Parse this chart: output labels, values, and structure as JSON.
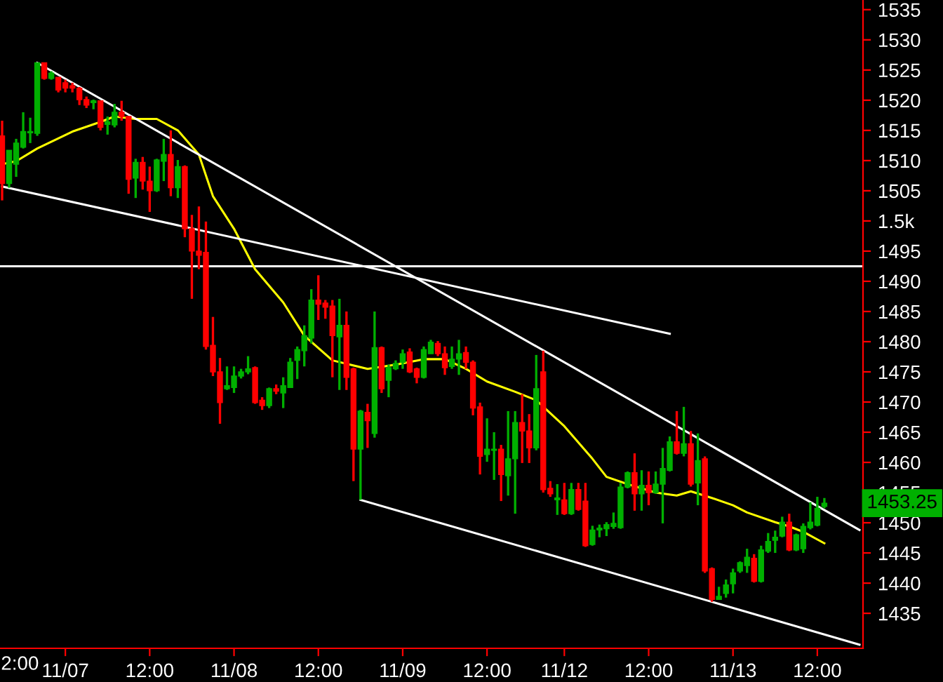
{
  "chart_data": {
    "type": "candlestick",
    "categories": [
      null,
      null,
      null,
      null,
      null,
      null,
      null,
      null,
      null,
      "11/07",
      null,
      null,
      null,
      null,
      null,
      null,
      null,
      null,
      null,
      null,
      null,
      "12:00",
      null,
      null,
      null,
      null,
      null,
      null,
      null,
      null,
      null,
      null,
      null,
      "11/08",
      null,
      null,
      null,
      null,
      null,
      null,
      null,
      null,
      null,
      null,
      null,
      "12:00",
      null,
      null,
      null,
      null,
      null,
      null,
      null,
      null,
      null,
      null,
      null,
      "11/09",
      null,
      null,
      null,
      null,
      null,
      null,
      null,
      null,
      null,
      null,
      null,
      "12:00",
      null,
      null,
      null,
      null,
      null,
      null,
      null,
      null,
      null,
      null,
      "11/12",
      null,
      null,
      null,
      null,
      null,
      null,
      null,
      null,
      null,
      null,
      null,
      "12:00",
      null,
      null,
      null,
      null,
      null,
      null,
      null,
      null,
      null,
      null,
      null,
      "11/13",
      null,
      null,
      null,
      null,
      null,
      null,
      null,
      null,
      null,
      null,
      null,
      "12:00",
      null,
      null,
      null,
      null,
      null,
      null
    ],
    "ylim": [
      1429.2,
      1536.6
    ],
    "yticks": [
      1435,
      1440,
      1445,
      1450,
      1455,
      1460,
      1465,
      1470,
      1475,
      1480,
      1485,
      1490,
      1495,
      {
        "value": 1500,
        "label": "1.5k"
      },
      1505,
      1510,
      1515,
      1520,
      1525,
      1530,
      1535
    ],
    "grid": false,
    "legend": false,
    "ref_lines": [
      {
        "axis": "y",
        "value": 1492.5,
        "color": "#ffffff"
      }
    ],
    "annotations": [
      "1453.25",
      "2:00"
    ],
    "series": [
      {
        "type": "candlestick",
        "ohlc": [
          [
            1514.1,
            1516.6,
            1503.4,
            1506.2
          ],
          [
            1506.2,
            1511.7,
            1505.5,
            1511.7
          ],
          [
            1509.4,
            1513.6,
            1507.3,
            1512.9
          ],
          [
            1512.2,
            1518.0,
            1512.0,
            1514.8
          ],
          [
            1514.6,
            1517.1,
            1512.9,
            1514.8
          ],
          [
            1514.5,
            1526.2,
            1514.1,
            1526.2
          ],
          [
            1526.2,
            1526.2,
            1523.4,
            1523.6
          ],
          [
            1523.6,
            1524.8,
            1523.4,
            1524.5
          ],
          [
            1523.8,
            1523.8,
            1521.3,
            1521.7
          ],
          [
            1522.9,
            1523.4,
            1521.3,
            1522.0
          ],
          [
            1522.4,
            1522.9,
            1521.3,
            1522.0
          ],
          [
            1522.0,
            1522.2,
            1519.2,
            1520.1
          ],
          [
            1520.1,
            1520.6,
            1518.7,
            1519.2
          ],
          [
            1519.6,
            1520.1,
            1518.5,
            1519.9
          ],
          [
            1519.9,
            1519.9,
            1515.0,
            1515.5
          ],
          [
            1516.0,
            1517.3,
            1514.3,
            1516.4
          ],
          [
            1515.9,
            1519.4,
            1515.5,
            1518.0
          ],
          [
            1518.0,
            1519.9,
            1516.6,
            1517.3
          ],
          [
            1517.3,
            1517.3,
            1504.5,
            1506.9
          ],
          [
            1507.1,
            1510.3,
            1503.8,
            1509.7
          ],
          [
            1509.7,
            1510.6,
            1505.2,
            1506.6
          ],
          [
            1506.6,
            1509.0,
            1501.5,
            1505.0
          ],
          [
            1505.0,
            1510.3,
            1504.8,
            1510.1
          ],
          [
            1509.9,
            1513.6,
            1506.6,
            1511.0
          ],
          [
            1511.0,
            1515.0,
            1504.1,
            1505.5
          ],
          [
            1505.5,
            1510.1,
            1503.8,
            1509.0
          ],
          [
            1509.0,
            1509.2,
            1497.3,
            1498.7
          ],
          [
            1498.7,
            1501.0,
            1487.1,
            1495.0
          ],
          [
            1495.0,
            1502.4,
            1492.0,
            1494.3
          ],
          [
            1494.8,
            1499.9,
            1478.7,
            1479.2
          ],
          [
            1479.4,
            1484.1,
            1474.3,
            1475.0
          ],
          [
            1475.0,
            1477.3,
            1466.4,
            1469.9
          ],
          [
            1472.2,
            1475.9,
            1472.0,
            1472.7
          ],
          [
            1472.4,
            1475.9,
            1471.5,
            1474.3
          ],
          [
            1474.3,
            1475.5,
            1473.9,
            1475.0
          ],
          [
            1475.0,
            1477.6,
            1474.6,
            1475.5
          ],
          [
            1475.7,
            1475.9,
            1469.7,
            1469.9
          ],
          [
            1470.3,
            1470.8,
            1468.7,
            1469.4
          ],
          [
            1469.4,
            1472.4,
            1469.0,
            1472.2
          ],
          [
            1472.2,
            1472.9,
            1471.3,
            1471.8
          ],
          [
            1471.5,
            1474.1,
            1469.0,
            1472.7
          ],
          [
            1472.4,
            1477.3,
            1472.4,
            1476.6
          ],
          [
            1476.9,
            1479.2,
            1473.8,
            1478.7
          ],
          [
            1478.5,
            1482.7,
            1475.9,
            1481.0
          ],
          [
            1480.6,
            1488.7,
            1479.7,
            1486.9
          ],
          [
            1486.9,
            1491.0,
            1483.6,
            1486.2
          ],
          [
            1486.4,
            1486.9,
            1483.8,
            1485.7
          ],
          [
            1485.9,
            1486.9,
            1474.1,
            1481.0
          ],
          [
            1480.8,
            1487.1,
            1472.0,
            1482.7
          ],
          [
            1482.7,
            1485.0,
            1472.0,
            1474.1
          ],
          [
            1475.5,
            1475.7,
            1456.9,
            1462.2
          ],
          [
            1462.2,
            1468.7,
            1453.8,
            1468.5
          ],
          [
            1468.3,
            1469.7,
            1462.4,
            1466.9
          ],
          [
            1464.8,
            1485.0,
            1464.1,
            1479.0
          ],
          [
            1479.0,
            1479.2,
            1471.5,
            1472.2
          ],
          [
            1473.6,
            1476.2,
            1470.8,
            1475.7
          ],
          [
            1475.5,
            1476.9,
            1475.3,
            1476.4
          ],
          [
            1476.6,
            1478.7,
            1475.5,
            1478.0
          ],
          [
            1478.3,
            1478.9,
            1474.8,
            1475.0
          ],
          [
            1475.5,
            1475.7,
            1473.1,
            1474.1
          ],
          [
            1474.1,
            1479.2,
            1473.9,
            1478.7
          ],
          [
            1478.0,
            1480.3,
            1478.0,
            1479.9
          ],
          [
            1479.7,
            1480.1,
            1477.6,
            1478.0
          ],
          [
            1478.0,
            1479.2,
            1474.5,
            1475.7
          ],
          [
            1475.9,
            1479.2,
            1475.5,
            1477.1
          ],
          [
            1477.1,
            1480.3,
            1474.5,
            1478.0
          ],
          [
            1478.2,
            1479.2,
            1475.5,
            1476.6
          ],
          [
            1476.6,
            1476.9,
            1467.8,
            1469.0
          ],
          [
            1469.2,
            1469.9,
            1458.0,
            1461.0
          ],
          [
            1461.3,
            1467.3,
            1460.1,
            1462.2
          ],
          [
            1462.0,
            1465.0,
            1457.1,
            1462.2
          ],
          [
            1462.2,
            1462.9,
            1453.6,
            1458.0
          ],
          [
            1457.8,
            1468.5,
            1454.5,
            1460.6
          ],
          [
            1460.6,
            1468.5,
            1451.5,
            1466.6
          ],
          [
            1466.6,
            1471.3,
            1459.9,
            1465.2
          ],
          [
            1465.2,
            1468.0,
            1459.9,
            1462.4
          ],
          [
            1462.4,
            1477.8,
            1462.0,
            1472.2
          ],
          [
            1475.0,
            1478.5,
            1455.0,
            1455.5
          ],
          [
            1455.7,
            1456.9,
            1454.3,
            1454.8
          ],
          [
            1453.8,
            1456.4,
            1451.3,
            1454.1
          ],
          [
            1453.8,
            1456.6,
            1451.3,
            1451.5
          ],
          [
            1451.5,
            1456.6,
            1451.3,
            1455.5
          ],
          [
            1455.5,
            1456.6,
            1452.0,
            1452.2
          ],
          [
            1453.6,
            1456.6,
            1446.0,
            1446.2
          ],
          [
            1446.4,
            1449.5,
            1446.2,
            1448.8
          ],
          [
            1448.8,
            1449.7,
            1447.6,
            1449.1
          ],
          [
            1449.0,
            1450.1,
            1447.8,
            1449.7
          ],
          [
            1449.4,
            1451.7,
            1449.0,
            1449.9
          ],
          [
            1449.2,
            1456.6,
            1449.0,
            1455.9
          ],
          [
            1455.9,
            1458.5,
            1455.7,
            1458.3
          ],
          [
            1458.3,
            1461.5,
            1452.0,
            1454.8
          ],
          [
            1454.8,
            1458.7,
            1452.0,
            1456.2
          ],
          [
            1456.2,
            1458.5,
            1452.9,
            1455.0
          ],
          [
            1455.0,
            1458.5,
            1454.8,
            1456.4
          ],
          [
            1456.4,
            1462.4,
            1449.9,
            1459.0
          ],
          [
            1458.7,
            1464.3,
            1458.5,
            1463.4
          ],
          [
            1463.4,
            1468.5,
            1461.3,
            1461.5
          ],
          [
            1461.5,
            1469.2,
            1461.0,
            1463.1
          ],
          [
            1463.1,
            1465.2,
            1456.0,
            1456.4
          ],
          [
            1456.6,
            1464.8,
            1452.9,
            1460.3
          ],
          [
            1460.6,
            1461.0,
            1441.7,
            1442.0
          ],
          [
            1442.4,
            1442.6,
            1436.9,
            1437.3
          ],
          [
            1437.3,
            1439.4,
            1437.3,
            1437.8
          ],
          [
            1438.3,
            1440.6,
            1437.6,
            1439.7
          ],
          [
            1439.9,
            1442.4,
            1438.3,
            1441.7
          ],
          [
            1442.0,
            1443.6,
            1441.7,
            1443.4
          ],
          [
            1442.9,
            1445.7,
            1441.7,
            1444.3
          ],
          [
            1444.1,
            1444.8,
            1440.1,
            1440.3
          ],
          [
            1440.3,
            1446.2,
            1440.1,
            1445.5
          ],
          [
            1445.3,
            1448.3,
            1445.0,
            1446.9
          ],
          [
            1447.1,
            1448.7,
            1445.0,
            1447.6
          ],
          [
            1447.8,
            1451.0,
            1447.6,
            1450.1
          ],
          [
            1450.1,
            1451.5,
            1445.3,
            1445.5
          ],
          [
            1445.5,
            1448.2,
            1445.3,
            1448.0
          ],
          [
            1445.7,
            1449.9,
            1445.0,
            1449.4
          ],
          [
            1449.2,
            1453.4,
            1448.9,
            1450.1
          ],
          [
            1449.6,
            1454.3,
            1449.4,
            1452.4
          ],
          [
            1452.7,
            1454.1,
            1452.4,
            1453.25
          ],
          null,
          null,
          null,
          null,
          null
        ],
        "colors": [
          "#ff0000",
          "#00b000",
          "#00b000",
          "#00b000",
          "#00b000",
          "#00b000",
          "#ff0000",
          "#00b000",
          "#ff0000",
          "#ff0000",
          "#ff0000",
          "#ff0000",
          "#ff0000",
          "#00b000",
          "#ff0000",
          "#00b000",
          "#00b000",
          "#ff0000",
          "#ff0000",
          "#00b000",
          "#ff0000",
          "#ff0000",
          "#00b000",
          "#00b000",
          "#ff0000",
          "#00b000",
          "#ff0000",
          "#ff0000",
          "#ff0000",
          "#ff0000",
          "#ff0000",
          "#ff0000",
          "#00b000",
          "#00b000",
          "#00b000",
          "#00b000",
          "#ff0000",
          "#ff0000",
          "#00b000",
          "#ff0000",
          "#00b000",
          "#00b000",
          "#00b000",
          "#00b000",
          "#00b000",
          "#ff0000",
          "#ff0000",
          "#ff0000",
          "#00b000",
          "#ff0000",
          "#ff0000",
          "#00b000",
          "#ff0000",
          "#00b000",
          "#ff0000",
          "#00b000",
          "#00b000",
          "#00b000",
          "#ff0000",
          "#ff0000",
          "#00b000",
          "#00b000",
          "#ff0000",
          "#ff0000",
          "#00b000",
          "#00b000",
          "#ff0000",
          "#ff0000",
          "#ff0000",
          "#00b000",
          "#00b000",
          "#ff0000",
          "#00b000",
          "#00b000",
          "#ff0000",
          "#ff0000",
          "#00b000",
          "#ff0000",
          "#ff0000",
          "#00b000",
          "#ff0000",
          "#00b000",
          "#ff0000",
          "#ff0000",
          "#00b000",
          "#00b000",
          "#00b000",
          "#00b000",
          "#00b000",
          "#00b000",
          "#ff0000",
          "#00b000",
          "#ff0000",
          "#00b000",
          "#00b000",
          "#00b000",
          "#ff0000",
          "#00b000",
          "#ff0000",
          "#00b000",
          "#ff0000",
          "#ff0000",
          "#00b000",
          "#00b000",
          "#00b000",
          "#00b000",
          "#00b000",
          "#ff0000",
          "#00b000",
          "#00b000",
          "#00b000",
          "#00b000",
          "#ff0000",
          "#00b000",
          "#00b000",
          "#00b000",
          "#00b000",
          "#00b000",
          null,
          null,
          null,
          null,
          null
        ]
      },
      {
        "type": "line",
        "color": "#ffff00",
        "values": [
          1509.4,
          null,
          1509.9,
          null,
          null,
          1512.0,
          null,
          null,
          null,
          null,
          1514.8,
          null,
          null,
          null,
          1516.4,
          null,
          1517.3,
          null,
          null,
          1516.9,
          null,
          null,
          1516.9,
          null,
          null,
          1515.0,
          null,
          null,
          1511.0,
          null,
          1504.1,
          null,
          null,
          1498.7,
          null,
          null,
          1492.0,
          null,
          null,
          null,
          1486.5,
          null,
          null,
          1481.0,
          null,
          null,
          null,
          1476.9,
          null,
          null,
          null,
          null,
          1475.5,
          null,
          null,
          null,
          1476.2,
          null,
          null,
          null,
          1477.1,
          null,
          null,
          1477.1,
          null,
          null,
          1475.5,
          null,
          null,
          1473.4,
          null,
          null,
          null,
          1471.7,
          null,
          null,
          1470.3,
          null,
          null,
          null,
          1466.0,
          null,
          null,
          null,
          1460.6,
          null,
          1457.6,
          null,
          null,
          1456.4,
          null,
          null,
          null,
          1455.0,
          null,
          null,
          1454.5,
          null,
          1455.2,
          null,
          null,
          1454.1,
          null,
          null,
          1452.9,
          null,
          1451.7,
          null,
          null,
          null,
          1450.1,
          null,
          1449.4,
          null,
          1448.5,
          null,
          null,
          1446.6,
          null,
          null,
          null,
          null,
          null
        ]
      },
      {
        "type": "line",
        "color": "#ffffff",
        "values": [
          null,
          null,
          null,
          null,
          null,
          1526.2,
          null,
          null,
          null,
          null,
          null,
          null,
          null,
          null,
          null,
          null,
          null,
          null,
          null,
          null,
          null,
          null,
          null,
          null,
          null,
          null,
          null,
          null,
          null,
          null,
          null,
          null,
          null,
          null,
          null,
          null,
          null,
          null,
          null,
          null,
          null,
          null,
          null,
          null,
          null,
          null,
          null,
          null,
          null,
          null,
          null,
          null,
          null,
          null,
          null,
          null,
          null,
          null,
          null,
          null,
          null,
          null,
          null,
          null,
          null,
          null,
          null,
          null,
          null,
          null,
          null,
          null,
          null,
          null,
          null,
          null,
          null,
          null,
          null,
          null,
          null,
          null,
          null,
          null,
          null,
          null,
          null,
          null,
          null,
          null,
          null,
          null,
          null,
          null,
          null,
          null,
          null,
          null,
          null,
          null,
          null,
          null,
          null,
          null,
          null,
          null,
          null,
          null,
          null,
          null,
          null,
          null,
          null,
          null,
          null,
          null,
          null,
          null,
          null,
          null,
          null,
          null,
          1448.8
        ]
      },
      {
        "type": "line",
        "color": "#ffffff",
        "values": [
          1505.7,
          null,
          null,
          null,
          null,
          null,
          null,
          null,
          null,
          null,
          null,
          null,
          null,
          null,
          null,
          null,
          null,
          null,
          null,
          null,
          null,
          null,
          null,
          null,
          null,
          null,
          null,
          null,
          null,
          null,
          null,
          null,
          null,
          null,
          null,
          null,
          null,
          null,
          null,
          null,
          null,
          null,
          null,
          null,
          null,
          null,
          null,
          null,
          null,
          null,
          null,
          null,
          null,
          null,
          null,
          null,
          null,
          null,
          null,
          null,
          null,
          null,
          null,
          null,
          null,
          null,
          null,
          null,
          null,
          null,
          null,
          null,
          null,
          null,
          null,
          null,
          null,
          null,
          null,
          null,
          null,
          null,
          null,
          null,
          null,
          null,
          null,
          null,
          null,
          null,
          null,
          null,
          null,
          null,
          null,
          1481.3,
          null,
          null,
          null,
          null,
          null,
          null,
          null,
          null,
          null,
          null,
          null,
          null,
          null,
          null,
          null,
          null,
          null,
          null,
          null,
          null,
          null,
          null,
          null,
          null,
          null,
          null,
          null
        ]
      },
      {
        "type": "line",
        "color": "#ffffff",
        "values": [
          null,
          null,
          null,
          null,
          null,
          null,
          null,
          null,
          null,
          null,
          null,
          null,
          null,
          null,
          null,
          null,
          null,
          null,
          null,
          null,
          null,
          null,
          null,
          null,
          null,
          null,
          null,
          null,
          null,
          null,
          null,
          null,
          null,
          null,
          null,
          null,
          null,
          null,
          null,
          null,
          null,
          null,
          null,
          null,
          null,
          null,
          null,
          null,
          null,
          null,
          null,
          1453.8,
          null,
          null,
          null,
          null,
          null,
          null,
          null,
          null,
          null,
          null,
          null,
          null,
          null,
          null,
          null,
          null,
          null,
          null,
          null,
          null,
          null,
          null,
          null,
          null,
          null,
          null,
          null,
          null,
          null,
          null,
          null,
          null,
          null,
          null,
          null,
          null,
          null,
          null,
          null,
          null,
          null,
          null,
          null,
          null,
          null,
          null,
          null,
          null,
          null,
          null,
          null,
          null,
          null,
          null,
          null,
          null,
          null,
          null,
          null,
          null,
          null,
          null,
          null,
          null,
          null,
          null,
          null,
          null,
          null,
          null,
          1429.8
        ]
      }
    ]
  }
}
